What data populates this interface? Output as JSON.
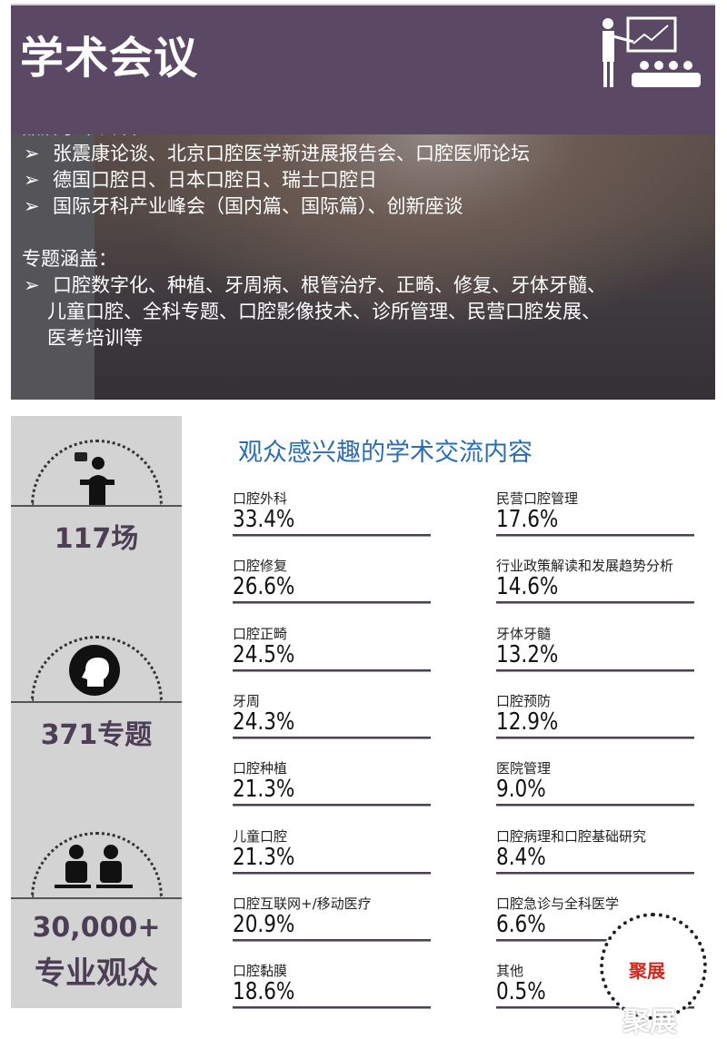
{
  "header": {
    "title": "学术会议",
    "icon": "presenter-audience-icon"
  },
  "brand": {
    "heading": "品牌学术会议：",
    "items": [
      "张震康论谈、北京口腔医学新进展报告会、口腔医师论坛",
      "德国口腔日、日本口腔日、瑞士口腔日",
      "国际牙科产业峰会（国内篇、国际篇）、创新座谈"
    ]
  },
  "topics": {
    "heading": "专题涵盖：",
    "line1": "口腔数字化、种植、牙周病、根管治疗、正畸、修复、牙体牙髓、",
    "line2": "儿童口腔、全科专题、口腔影像技术、诊所管理、民营口腔发展、",
    "line3": "医考培训等"
  },
  "bullet": "➢",
  "stats": [
    {
      "value": "117场",
      "icon": "speaker-podium-icon"
    },
    {
      "value": "371专题",
      "icon": "head-brain-icon"
    },
    {
      "value": "30,000+",
      "value2": "专业观众",
      "icon": "audience-people-icon"
    }
  ],
  "interest": {
    "title": "观众感兴趣的学术交流内容",
    "color": "#2a6db5",
    "left": [
      {
        "label": "口腔外科",
        "value": "33.4%"
      },
      {
        "label": "口腔修复",
        "value": "26.6%"
      },
      {
        "label": "口腔正畸",
        "value": "24.5%"
      },
      {
        "label": "牙周",
        "value": "24.3%"
      },
      {
        "label": "口腔种植",
        "value": "21.3%"
      },
      {
        "label": "儿童口腔",
        "value": "21.3%"
      },
      {
        "label": "口腔互联网+/移动医疗",
        "value": "20.9%"
      },
      {
        "label": "口腔黏膜",
        "value": "18.6%"
      }
    ],
    "right": [
      {
        "label": "民营口腔管理",
        "value": "17.6%"
      },
      {
        "label": "行业政策解读和发展趋势分析",
        "value": "14.6%"
      },
      {
        "label": "牙体牙髓",
        "value": "13.2%"
      },
      {
        "label": "口腔预防",
        "value": "12.9%"
      },
      {
        "label": "医院管理",
        "value": "9.0%"
      },
      {
        "label": "口腔病理和口腔基础研究",
        "value": "8.4%"
      },
      {
        "label": "口腔急诊与全科医学",
        "value": "6.6%"
      },
      {
        "label": "其他",
        "value": "0.5%"
      }
    ]
  },
  "qr": {
    "label": "聚展",
    "watermark": "聚展"
  }
}
